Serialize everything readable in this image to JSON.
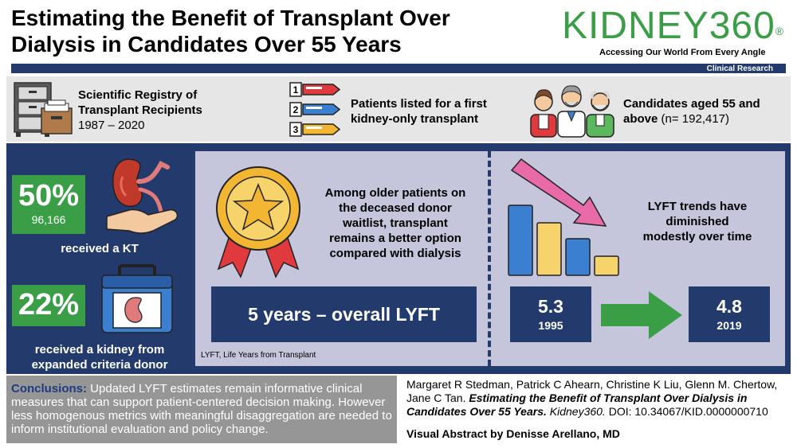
{
  "header": {
    "title_line1": "Estimating the Benefit of Transplant Over",
    "title_line2": "Dialysis in Candidates Over 55 Years",
    "logo": "KIDNEY360",
    "logo_mark": "®",
    "tagline": "Accessing Our World From Every Angle",
    "section": "Clinical Research"
  },
  "info": {
    "registry_line1": "Scientific Registry of",
    "registry_line2": "Transplant Recipients",
    "registry_years": "1987 – 2020",
    "patients_line1": "Patients listed for a first",
    "patients_line2": "kidney-only transplant",
    "candidates_bold1": "Candidates aged 55 and",
    "candidates_bold2": "above",
    "candidates_n": "(n= 192,417)",
    "list_numbers": [
      "1",
      "2",
      "3"
    ]
  },
  "left": {
    "kt_percent": "50%",
    "kt_count": "96,166",
    "kt_label": "received a KT",
    "ecd_percent": "22%",
    "ecd_label_line1": "received a kidney from",
    "ecd_label_line2": "expanded criteria donor"
  },
  "middle": {
    "text_line1": "Among older patients on",
    "text_line2": "the deceased donor",
    "text_line3": "waitlist, transplant",
    "text_line4": "remains a better option",
    "text_line5": "compared with dialysis",
    "lyft_box": "5 years – overall LYFT",
    "footnote": "LYFT, Life Years from Transplant"
  },
  "right": {
    "trend_line1": "LYFT trends have",
    "trend_line2": "diminished",
    "trend_line3": "modestly over time",
    "start_value": "5.3",
    "start_year": "1995",
    "end_value": "4.8",
    "end_year": "2019"
  },
  "footer": {
    "conclusions_label": "Conclusions:",
    "conclusions_text": " Updated LYFT estimates remain informative clinical measures that can support patient-centered decision making. However less homogenous metrics with meaningful disaggregation are needed to inform institutional evaluation and policy change.",
    "authors": "Margaret R Stedman, Patrick C Ahearn, Christine K Liu, Glenn M. Chertow, Jane C Tan.",
    "paper_title": "Estimating the Benefit of Transplant Over Dialysis in Candidates Over 55 Years.",
    "journal": "Kidney360.",
    "doi": "DOI: 10.34067/KID.0000000710",
    "credit": "Visual Abstract by Denisse Arellano, MD"
  },
  "colors": {
    "navy": "#233a6d",
    "green": "#3a9e47",
    "lavender": "#c5c5dc",
    "gray_band": "#e6e6e6",
    "conclusions_bg": "#969696"
  },
  "icons": [
    "file-cabinet-icon",
    "numbered-list-icon",
    "elderly-people-icon",
    "kidney-hand-icon",
    "kidney-cooler-icon",
    "star-medal-icon",
    "declining-bar-chart-icon",
    "right-arrow-icon"
  ]
}
